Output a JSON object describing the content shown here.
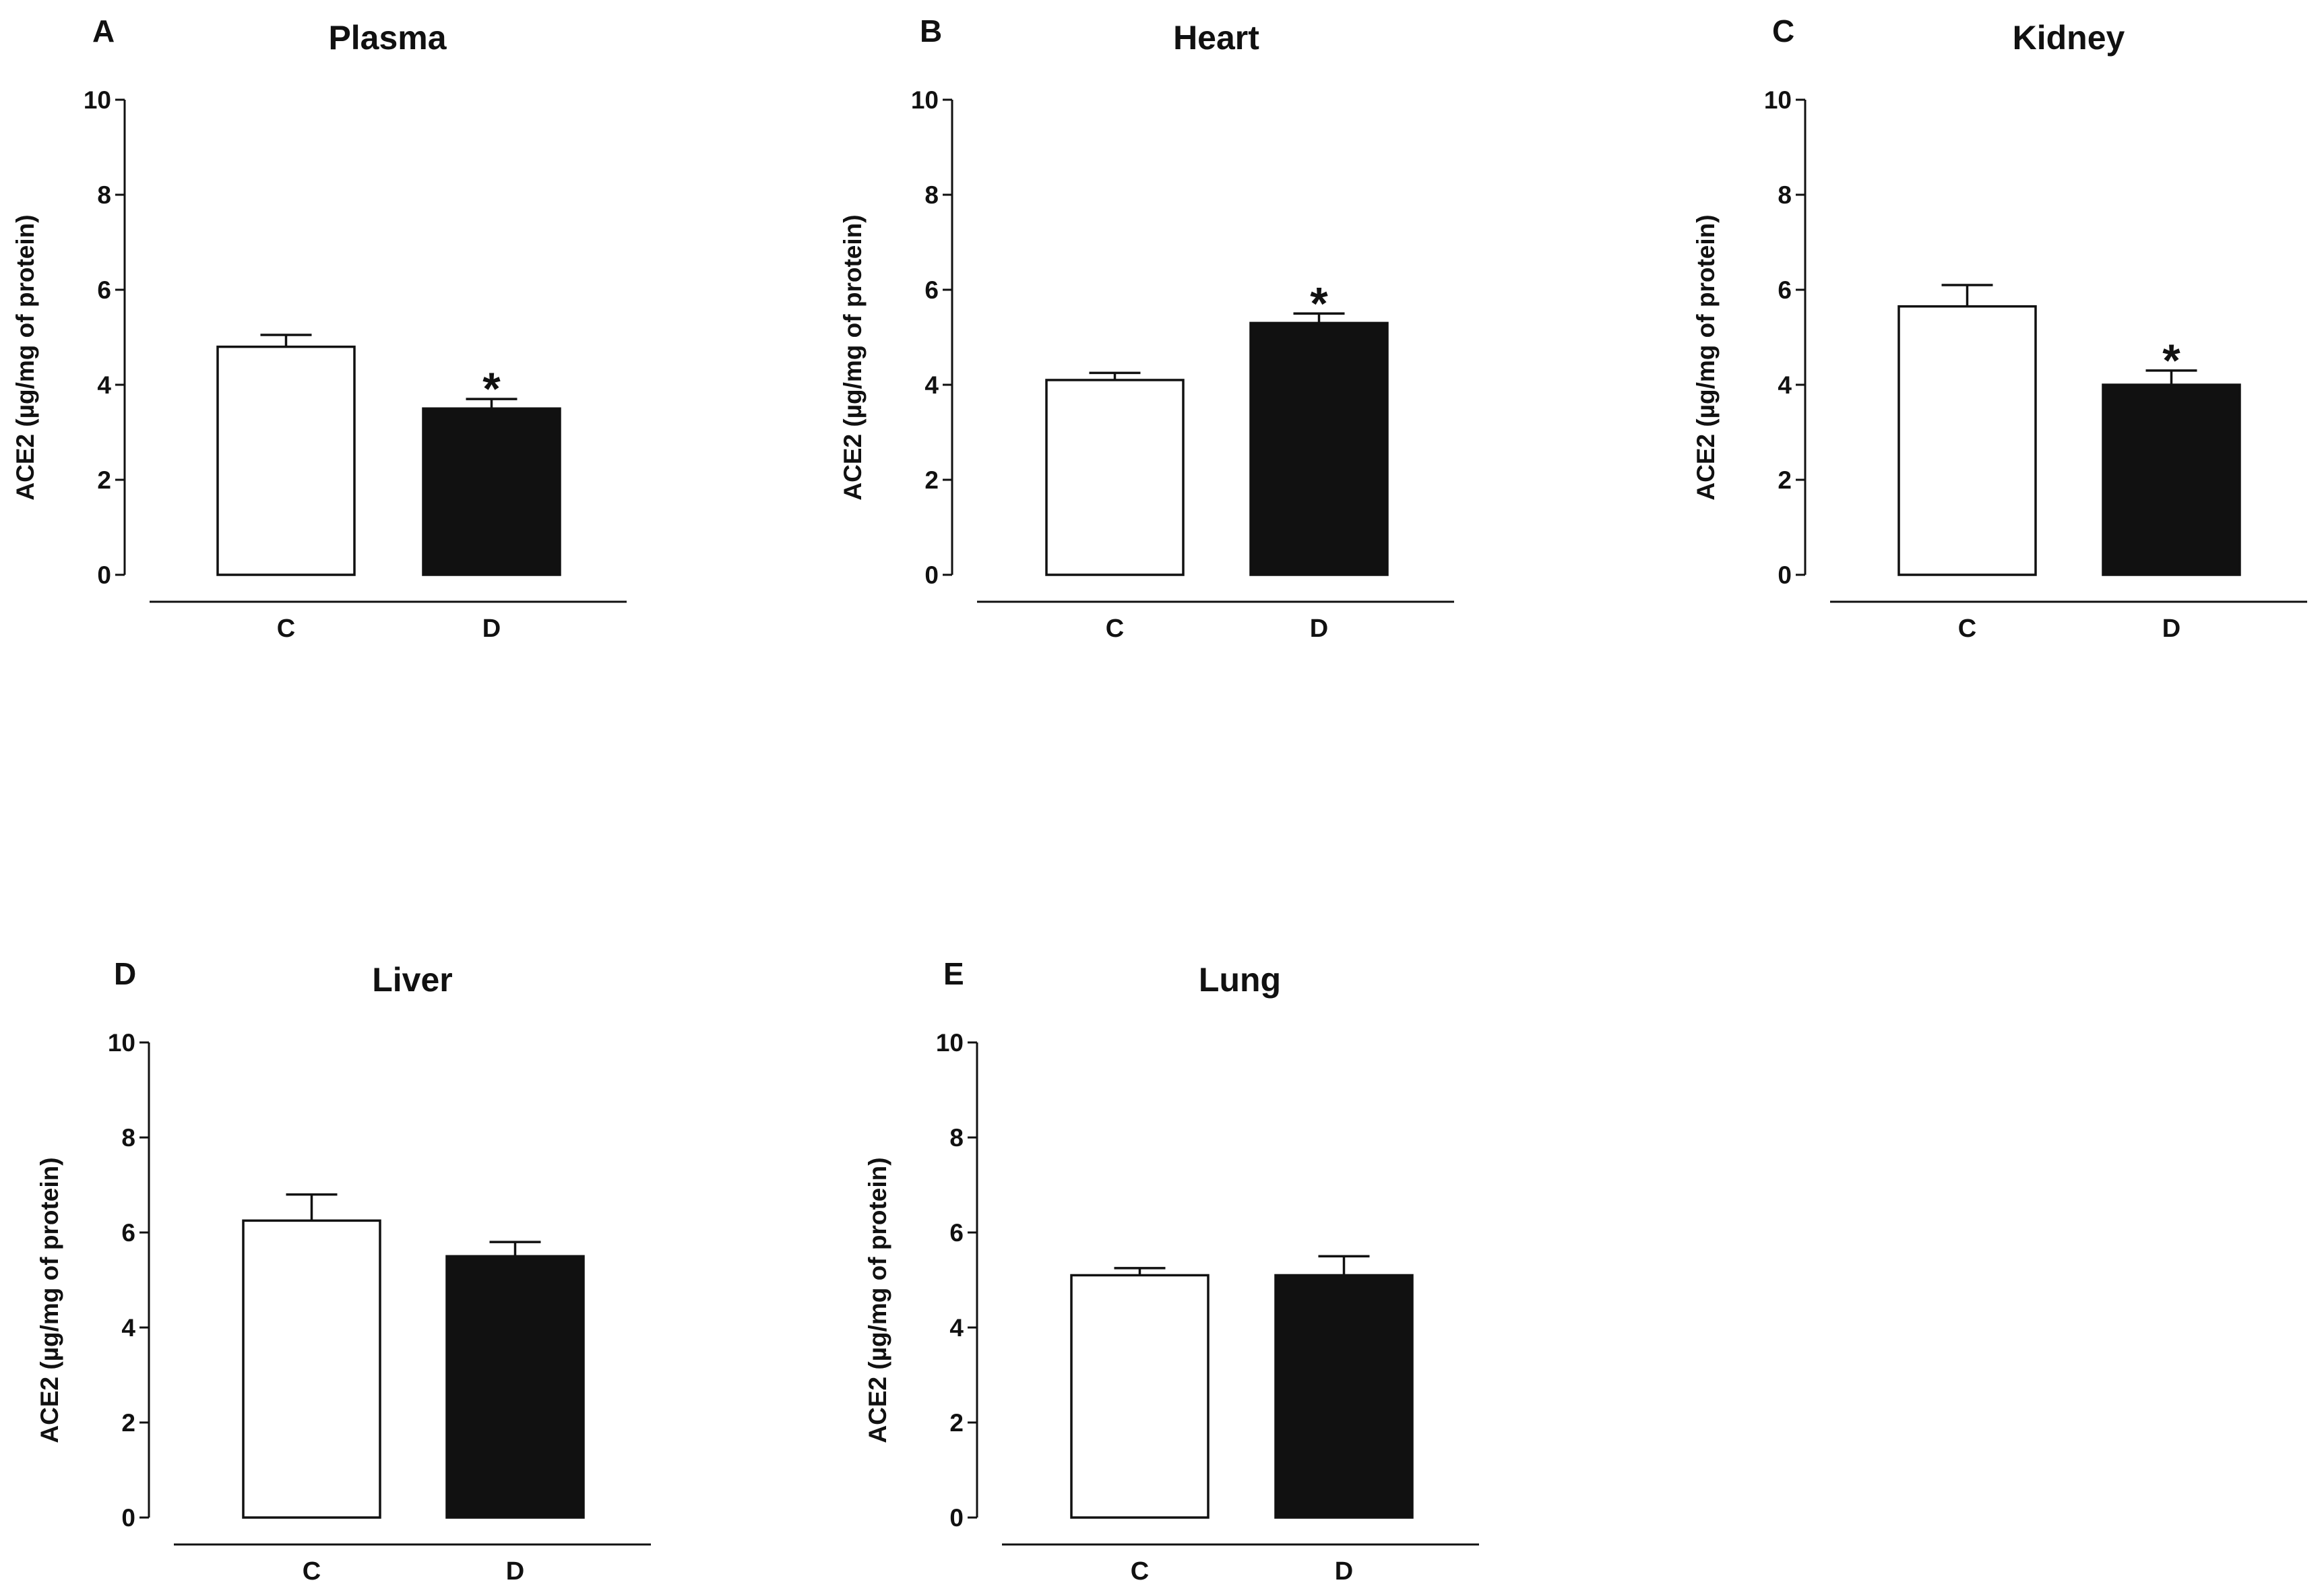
{
  "colors": {
    "control": "#ffffff",
    "diabetic": "#111111",
    "axis": "#111111"
  },
  "chart_data": [
    {
      "type": "bar",
      "panel": "A",
      "title": "Plasma",
      "ylabel": "ACE2 (µg/mg of protein)",
      "xlabel": "",
      "ylim": [
        0,
        10
      ],
      "yticks": [
        "0",
        "2",
        "4",
        "6",
        "8",
        "10"
      ],
      "categories": [
        "C",
        "D"
      ],
      "values": [
        4.8,
        3.5
      ],
      "errors": [
        0.25,
        0.2
      ],
      "significance": [
        "",
        "*"
      ]
    },
    {
      "type": "bar",
      "panel": "B",
      "title": "Heart",
      "ylabel": "ACE2 (µg/mg of protein)",
      "xlabel": "",
      "ylim": [
        0,
        10
      ],
      "yticks": [
        "0",
        "2",
        "4",
        "6",
        "8",
        "10"
      ],
      "categories": [
        "C",
        "D"
      ],
      "values": [
        4.1,
        5.3
      ],
      "errors": [
        0.15,
        0.2
      ],
      "significance": [
        "",
        "*"
      ]
    },
    {
      "type": "bar",
      "panel": "C",
      "title": "Kidney",
      "ylabel": "ACE2 (µg/mg of protein)",
      "xlabel": "",
      "ylim": [
        0,
        10
      ],
      "yticks": [
        "0",
        "2",
        "4",
        "6",
        "8",
        "10"
      ],
      "categories": [
        "C",
        "D"
      ],
      "values": [
        5.65,
        4.0
      ],
      "errors": [
        0.45,
        0.3
      ],
      "significance": [
        "",
        "*"
      ]
    },
    {
      "type": "bar",
      "panel": "D",
      "title": "Liver",
      "ylabel": "ACE2 (µg/mg of protein)",
      "xlabel": "",
      "ylim": [
        0,
        10
      ],
      "yticks": [
        "0",
        "2",
        "4",
        "6",
        "8",
        "10"
      ],
      "categories": [
        "C",
        "D"
      ],
      "values": [
        6.25,
        5.5
      ],
      "errors": [
        0.55,
        0.3
      ],
      "significance": [
        "",
        ""
      ]
    },
    {
      "type": "bar",
      "panel": "E",
      "title": "Lung",
      "ylabel": "ACE2 (µg/mg of protein)",
      "xlabel": "",
      "ylim": [
        0,
        10
      ],
      "yticks": [
        "0",
        "2",
        "4",
        "6",
        "8",
        "10"
      ],
      "categories": [
        "C",
        "D"
      ],
      "values": [
        5.1,
        5.1
      ],
      "errors": [
        0.15,
        0.4
      ],
      "significance": [
        "",
        ""
      ]
    }
  ]
}
